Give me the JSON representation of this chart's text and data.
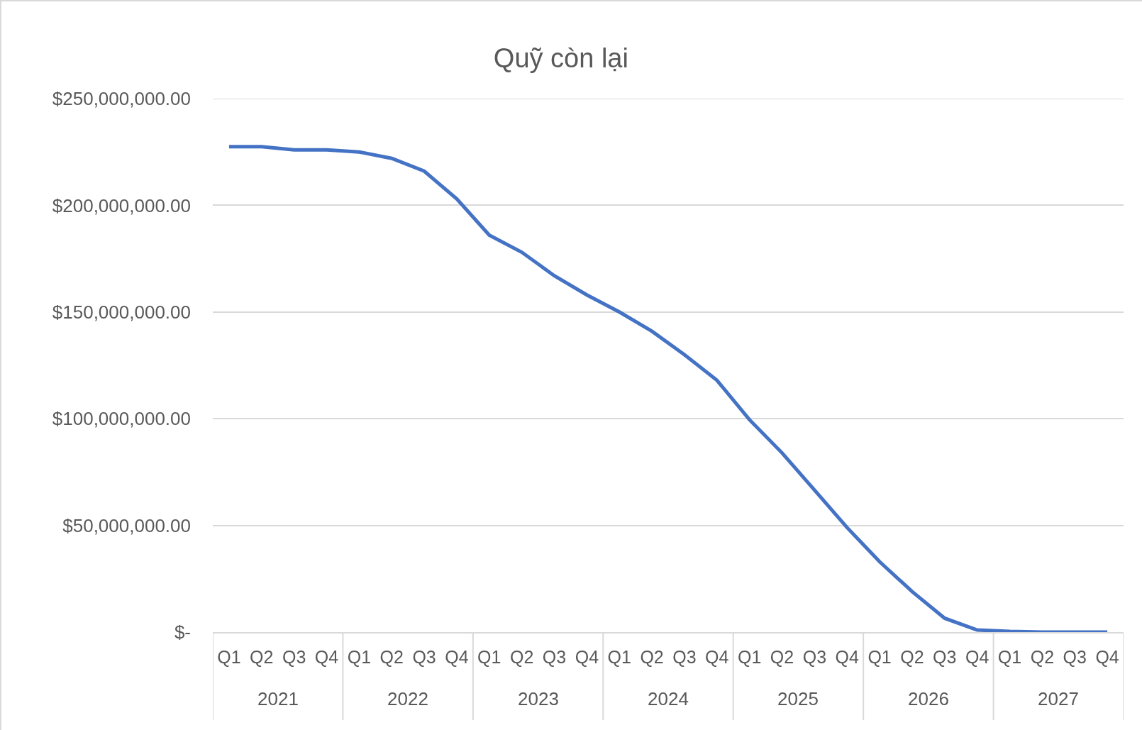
{
  "chart_data": {
    "type": "line",
    "title": "Quỹ còn lại",
    "categories": [
      "Q1",
      "Q2",
      "Q3",
      "Q4",
      "Q1",
      "Q2",
      "Q3",
      "Q4",
      "Q1",
      "Q2",
      "Q3",
      "Q4",
      "Q1",
      "Q2",
      "Q3",
      "Q4",
      "Q1",
      "Q2",
      "Q3",
      "Q4",
      "Q1",
      "Q2",
      "Q3",
      "Q4",
      "Q1",
      "Q2",
      "Q3",
      "Q4"
    ],
    "annotations": [
      "2021",
      "2022",
      "2023",
      "2024",
      "2025",
      "2026",
      "2027"
    ],
    "series": [
      {
        "color": "#4472c4",
        "values": [
          227500000,
          227500000,
          226000000,
          226000000,
          225000000,
          222000000,
          216000000,
          203000000,
          186000000,
          178000000,
          167000000,
          158000000,
          150000000,
          141000000,
          130000000,
          118000000,
          99500000,
          84000000,
          66500000,
          49000000,
          33000000,
          19000000,
          6500000,
          1000000,
          300000,
          0,
          0,
          0
        ]
      }
    ],
    "ylim": [
      0,
      250000000
    ],
    "yticks": [
      {
        "value": 0,
        "label": "$-"
      },
      {
        "value": 50000000,
        "label": "$50,000,000.00"
      },
      {
        "value": 100000000,
        "label": "$100,000,000.00"
      },
      {
        "value": 150000000,
        "label": "$150,000,000.00"
      },
      {
        "value": 200000000,
        "label": "$200,000,000.00"
      },
      {
        "value": 250000000,
        "label": "$250,000,000.00"
      }
    ],
    "grid": "y",
    "marker": "none",
    "line_style": "solid"
  }
}
